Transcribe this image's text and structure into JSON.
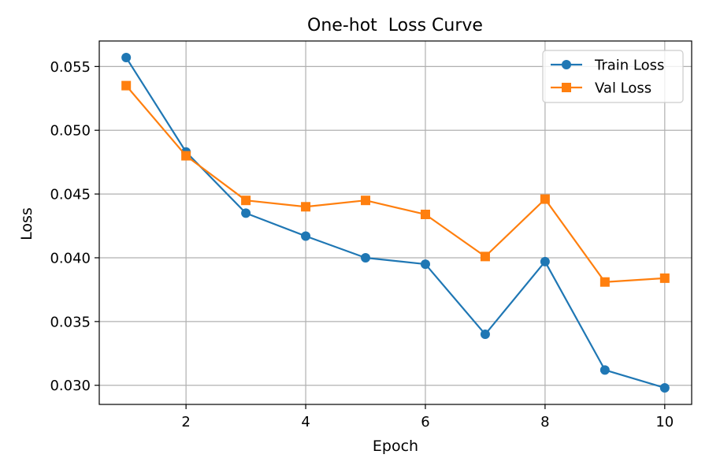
{
  "chart_data": {
    "type": "line",
    "title": "One-hot  Loss Curve",
    "xlabel": "Epoch",
    "ylabel": "Loss",
    "xlim": [
      0.55,
      10.45
    ],
    "ylim": [
      0.0285,
      0.057
    ],
    "xticks": [
      2,
      4,
      6,
      8,
      10
    ],
    "xtick_labels": [
      "2",
      "4",
      "6",
      "8",
      "10"
    ],
    "yticks": [
      0.03,
      0.035,
      0.04,
      0.045,
      0.05,
      0.055
    ],
    "ytick_labels": [
      "0.030",
      "0.035",
      "0.040",
      "0.045",
      "0.050",
      "0.055"
    ],
    "grid": true,
    "legend_position": "top-right",
    "x": [
      1,
      2,
      3,
      4,
      5,
      6,
      7,
      8,
      9,
      10
    ],
    "series": [
      {
        "name": "Train Loss",
        "color": "#1f77b4",
        "marker": "circle",
        "values": [
          0.0557,
          0.0483,
          0.0435,
          0.0417,
          0.04,
          0.0395,
          0.034,
          0.0397,
          0.0312,
          0.0298
        ]
      },
      {
        "name": "Val Loss",
        "color": "#ff7f0e",
        "marker": "square",
        "values": [
          0.0535,
          0.048,
          0.0445,
          0.044,
          0.0445,
          0.0434,
          0.0401,
          0.0446,
          0.0381,
          0.0384
        ]
      }
    ]
  }
}
